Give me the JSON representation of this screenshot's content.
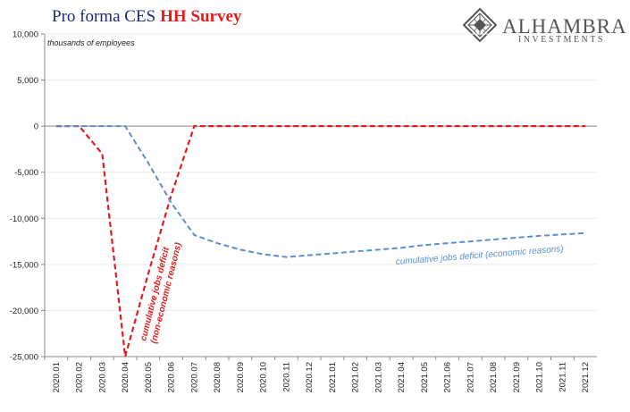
{
  "chart_data": {
    "type": "line",
    "title_part1": "Pro forma CES",
    "title_part2": "HH Survey",
    "units_label": "thousands of employees",
    "ylim": [
      -25000,
      10000
    ],
    "y_ticks": [
      10000,
      5000,
      0,
      -5000,
      -10000,
      -15000,
      -20000,
      -25000
    ],
    "y_tick_labels": [
      "10,000",
      "5,000",
      "0",
      "-5,000",
      "-10,000",
      "-15,000",
      "-20,000",
      "-25,000"
    ],
    "grid": true,
    "categories": [
      "2020.01",
      "2020.02",
      "2020.03",
      "2020.04",
      "2020.05",
      "2020.06",
      "2020.07",
      "2020.08",
      "2020.09",
      "2020.10",
      "2020.11",
      "2020.12",
      "2021.01",
      "2021.02",
      "2021.03",
      "2021.04",
      "2021.05",
      "2021.06",
      "2021.07",
      "2021.08",
      "2021.09",
      "2021.10",
      "2021.11",
      "2021.12"
    ],
    "series": [
      {
        "annotation": [
          "cumulative jobs deficit",
          "(non-economic reasons)"
        ],
        "color": "#e01e1e",
        "values": [
          0,
          0,
          -3000,
          -25000,
          -16000,
          -7500,
          0,
          0,
          0,
          0,
          0,
          0,
          0,
          0,
          0,
          0,
          0,
          0,
          0,
          0,
          0,
          0,
          0,
          0
        ]
      },
      {
        "annotation": [
          "cumulative jobs deficit (economic reasons)"
        ],
        "color": "#5b8fcc",
        "values": [
          0,
          0,
          0,
          0,
          -4000,
          -8300,
          -11800,
          -12700,
          -13400,
          -13900,
          -14200,
          -14000,
          -13800,
          -13600,
          -13400,
          -13200,
          -12900,
          -12700,
          -12500,
          -12300,
          -12100,
          -11900,
          -11750,
          -11600
        ]
      }
    ]
  },
  "logo": {
    "name": "ALHAMBRA",
    "tagline": "INVESTMENTS"
  }
}
